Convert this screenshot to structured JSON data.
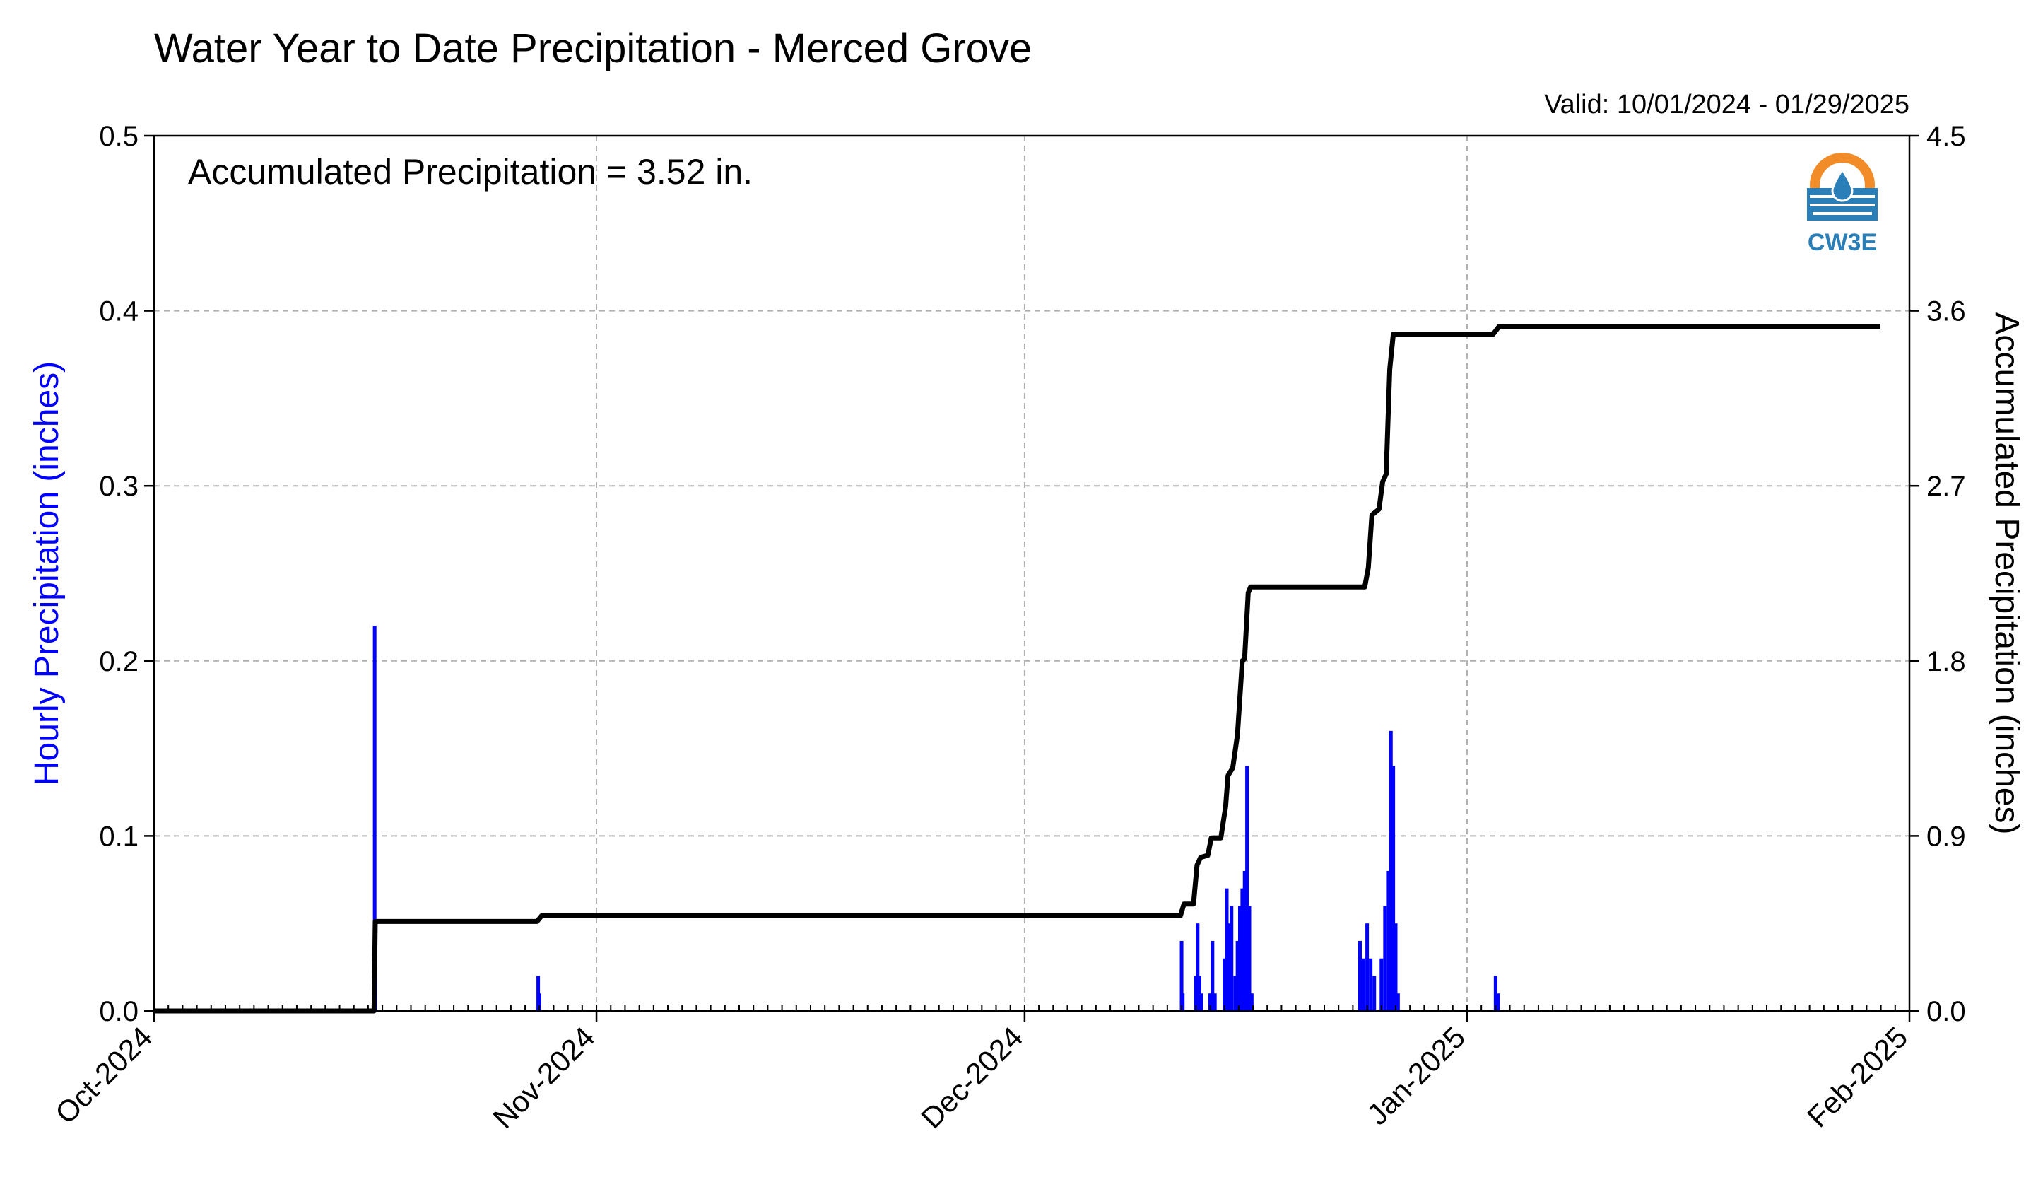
{
  "chart_data": {
    "type": "bar",
    "title": "Water Year to Date Precipitation - Merced Grove",
    "valid_label": "Valid: 10/01/2024 - 01/29/2025",
    "annotation": "Accumulated Precipitation = 3.52 in.",
    "logo_text": "CW3E",
    "xlim": [
      "2024-10-01",
      "2025-02-01"
    ],
    "x_ticks": [
      {
        "date": "2024-10-01",
        "label": "Oct-2024"
      },
      {
        "date": "2024-11-01",
        "label": "Nov-2024"
      },
      {
        "date": "2024-12-01",
        "label": "Dec-2024"
      },
      {
        "date": "2025-01-01",
        "label": "Jan-2025"
      },
      {
        "date": "2025-02-01",
        "label": "Feb-2025"
      }
    ],
    "left_axis": {
      "label": "Hourly Precipitation (inches)",
      "ylim": [
        0,
        0.5
      ],
      "ticks": [
        0.0,
        0.1,
        0.2,
        0.3,
        0.4,
        0.5
      ],
      "tick_labels": [
        "0.0",
        "0.1",
        "0.2",
        "0.3",
        "0.4",
        "0.5"
      ],
      "color": "#0000ff"
    },
    "right_axis": {
      "label": "Accumulated Precipitation (inches)",
      "ylim": [
        0,
        4.5
      ],
      "ticks": [
        0.0,
        0.9,
        1.8,
        2.7,
        3.6,
        4.5
      ],
      "tick_labels": [
        "0.0",
        "0.9",
        "1.8",
        "2.7",
        "3.6",
        "4.5"
      ],
      "color": "#000000"
    },
    "grid": true,
    "series": [
      {
        "name": "Hourly Precipitation",
        "kind": "bar",
        "axis": "left",
        "color": "#0000ff",
        "points": [
          [
            "2024-10-16T10:00",
            0.02
          ],
          [
            "2024-10-16T11:00",
            0.22
          ],
          [
            "2024-10-16T12:00",
            0.05
          ],
          [
            "2024-10-27T22:00",
            0.02
          ],
          [
            "2024-10-28T00:00",
            0.01
          ],
          [
            "2024-12-12T00:00",
            0.04
          ],
          [
            "2024-12-12T02:00",
            0.01
          ],
          [
            "2024-12-13T00:00",
            0.02
          ],
          [
            "2024-12-13T03:00",
            0.05
          ],
          [
            "2024-12-13T06:00",
            0.02
          ],
          [
            "2024-12-13T09:00",
            0.01
          ],
          [
            "2024-12-14T00:00",
            0.01
          ],
          [
            "2024-12-14T04:00",
            0.04
          ],
          [
            "2024-12-14T08:00",
            0.01
          ],
          [
            "2024-12-15T00:00",
            0.03
          ],
          [
            "2024-12-15T04:00",
            0.07
          ],
          [
            "2024-12-15T08:00",
            0.05
          ],
          [
            "2024-12-15T12:00",
            0.06
          ],
          [
            "2024-12-15T18:00",
            0.02
          ],
          [
            "2024-12-15T22:00",
            0.04
          ],
          [
            "2024-12-16T02:00",
            0.06
          ],
          [
            "2024-12-16T06:00",
            0.07
          ],
          [
            "2024-12-16T10:00",
            0.08
          ],
          [
            "2024-12-16T14:00",
            0.14
          ],
          [
            "2024-12-16T18:00",
            0.06
          ],
          [
            "2024-12-16T22:00",
            0.01
          ],
          [
            "2024-12-24T12:00",
            0.04
          ],
          [
            "2024-12-24T18:00",
            0.03
          ],
          [
            "2024-12-25T00:00",
            0.05
          ],
          [
            "2024-12-25T06:00",
            0.03
          ],
          [
            "2024-12-25T12:00",
            0.02
          ],
          [
            "2024-12-26T00:00",
            0.03
          ],
          [
            "2024-12-26T06:00",
            0.06
          ],
          [
            "2024-12-26T12:00",
            0.08
          ],
          [
            "2024-12-26T16:00",
            0.16
          ],
          [
            "2024-12-26T20:00",
            0.14
          ],
          [
            "2024-12-27T00:00",
            0.05
          ],
          [
            "2024-12-27T04:00",
            0.01
          ],
          [
            "2025-01-03T00:00",
            0.02
          ],
          [
            "2025-01-03T04:00",
            0.01
          ]
        ]
      },
      {
        "name": "Accumulated Precipitation",
        "kind": "line",
        "axis": "right",
        "color": "#000000",
        "points": [
          [
            "2024-10-01T00:00",
            0.0
          ],
          [
            "2024-10-16T10:00",
            0.0
          ],
          [
            "2024-10-16T12:00",
            0.46
          ],
          [
            "2024-10-27T20:00",
            0.46
          ],
          [
            "2024-10-28T04:00",
            0.49
          ],
          [
            "2024-12-11T22:00",
            0.49
          ],
          [
            "2024-12-12T04:00",
            0.55
          ],
          [
            "2024-12-12T20:00",
            0.55
          ],
          [
            "2024-12-13T02:00",
            0.75
          ],
          [
            "2024-12-13T08:00",
            0.79
          ],
          [
            "2024-12-13T20:00",
            0.8
          ],
          [
            "2024-12-14T02:00",
            0.89
          ],
          [
            "2024-12-14T18:00",
            0.89
          ],
          [
            "2024-12-15T02:00",
            1.05
          ],
          [
            "2024-12-15T06:00",
            1.21
          ],
          [
            "2024-12-15T14:00",
            1.25
          ],
          [
            "2024-12-15T22:00",
            1.42
          ],
          [
            "2024-12-16T06:00",
            1.8
          ],
          [
            "2024-12-16T10:00",
            1.81
          ],
          [
            "2024-12-16T16:00",
            2.15
          ],
          [
            "2024-12-16T20:00",
            2.18
          ],
          [
            "2024-12-24T20:00",
            2.18
          ],
          [
            "2024-12-25T02:00",
            2.28
          ],
          [
            "2024-12-25T08:00",
            2.55
          ],
          [
            "2024-12-25T20:00",
            2.58
          ],
          [
            "2024-12-26T02:00",
            2.72
          ],
          [
            "2024-12-26T08:00",
            2.76
          ],
          [
            "2024-12-26T14:00",
            3.3
          ],
          [
            "2024-12-26T20:00",
            3.48
          ],
          [
            "2025-01-02T20:00",
            3.48
          ],
          [
            "2025-01-03T06:00",
            3.52
          ],
          [
            "2025-01-29T23:00",
            3.52
          ]
        ]
      }
    ]
  }
}
